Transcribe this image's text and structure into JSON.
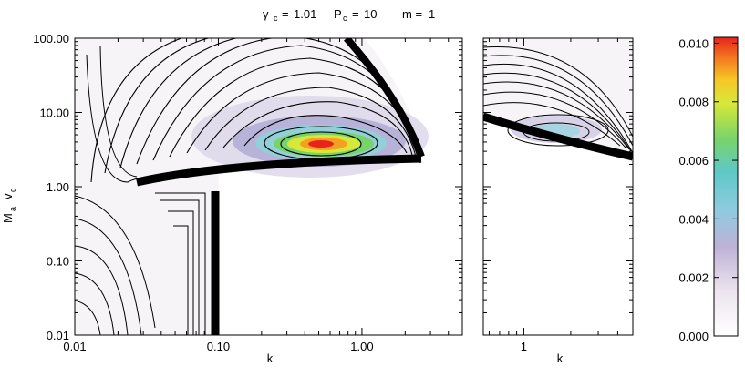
{
  "chart_data": [
    {
      "type": "heatmap",
      "panel": "left",
      "title_parts": {
        "gamma_c": "1.01",
        "P_c": "10",
        "m": "1"
      },
      "xlabel": "k",
      "ylabel_main": "M",
      "ylabel_sub_a": "a",
      "ylabel_v": "v",
      "ylabel_sub_c": "c",
      "x_scale": "log",
      "y_scale": "log",
      "xlim": [
        0.01,
        5
      ],
      "ylim": [
        0.01,
        100
      ],
      "x_ticks": [
        "0.01",
        "0.10",
        "1.00"
      ],
      "y_ticks": [
        "0.01",
        "0.10",
        "1.00",
        "10.00",
        "100.00"
      ],
      "peak": {
        "k": 0.55,
        "Mv": 3.3,
        "value": 0.0102
      },
      "grid": false
    },
    {
      "type": "heatmap",
      "panel": "right",
      "xlabel": "k",
      "x_scale": "log",
      "y_scale": "log",
      "xlim": [
        0.55,
        5
      ],
      "ylim": [
        0.01,
        100
      ],
      "x_ticks": [
        "1"
      ],
      "peak": {
        "k": 1.5,
        "Mv": 5.5,
        "value": 0.0026
      },
      "grid": false
    },
    {
      "type": "colorbar",
      "vmin": 0.0,
      "vmax": 0.0102,
      "ticks": [
        "0.000",
        "0.002",
        "0.004",
        "0.006",
        "0.008",
        "0.010"
      ],
      "tick_values": [
        0.0,
        0.002,
        0.004,
        0.006,
        0.008,
        0.01
      ]
    }
  ]
}
